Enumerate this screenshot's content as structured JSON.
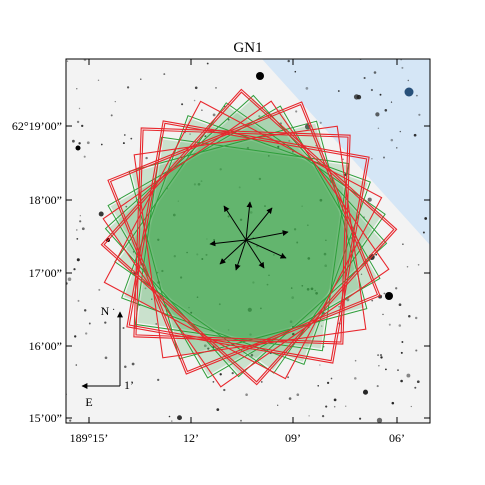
{
  "title": "GN1",
  "y_ticks": [
    "62°19’00”",
    "18’00”",
    "17’00”",
    "16’00”",
    "15’00”"
  ],
  "x_ticks": [
    "189°15’",
    "12’",
    "09’",
    "06’"
  ],
  "compass": {
    "north": "N",
    "east": "E",
    "scale": "1’"
  },
  "colors": {
    "frame_red": "#e8272d",
    "frame_green": "#2e9e3a",
    "green_fill": "#3aa64a",
    "blue_field": "#cfe3f6",
    "sky": "#f3f3f3"
  },
  "overlay": {
    "red_frame_count": 11,
    "green_frame_count": 6,
    "arrow_count": 9
  }
}
